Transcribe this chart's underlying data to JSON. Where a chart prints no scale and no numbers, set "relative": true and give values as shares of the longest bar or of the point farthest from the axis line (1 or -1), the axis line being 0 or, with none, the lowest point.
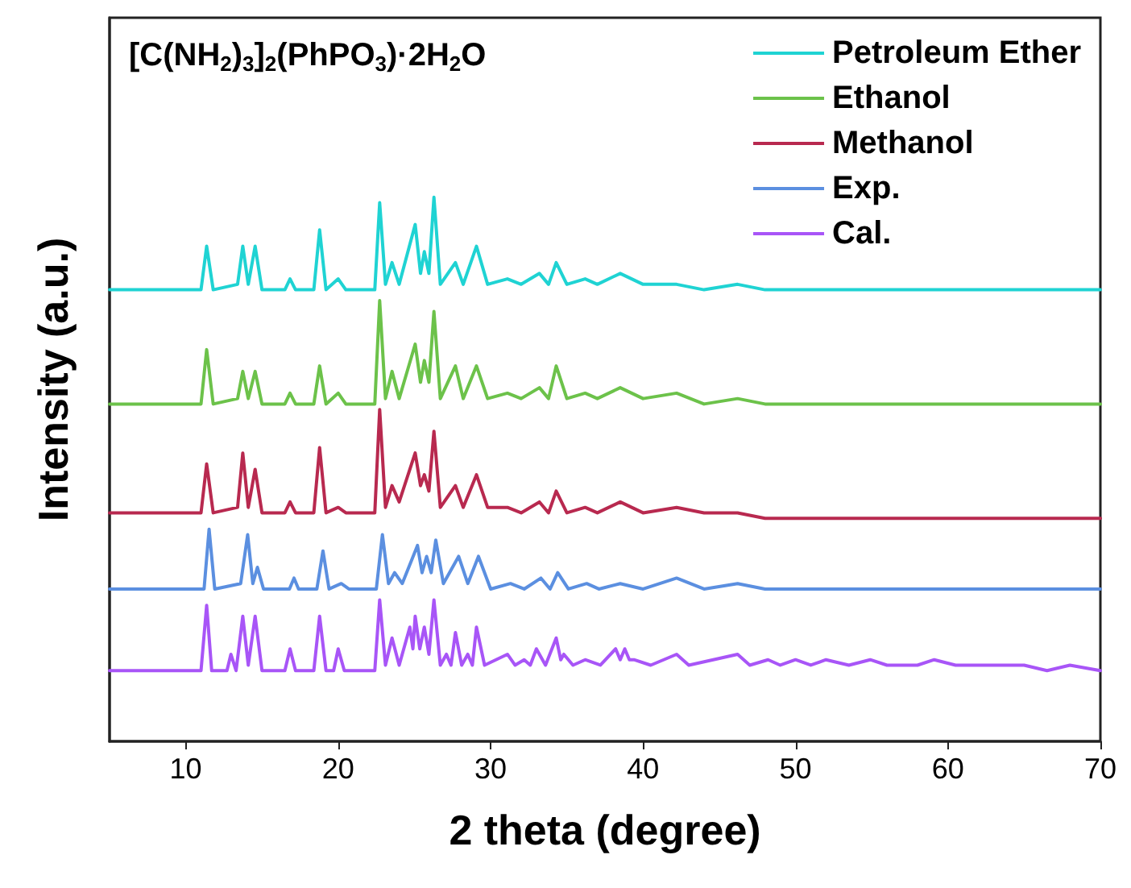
{
  "chart_data": {
    "type": "line",
    "title": "[C(NH$_{2}$)$_{3}$]$_{2}$(PhPO$_{3}$)·2H$_{2}$O",
    "xlabel": "2 theta (degree)",
    "ylabel": "Intensity (a.u.)",
    "relative": true,
    "xlim": [
      5,
      70
    ],
    "xticks": [
      10,
      20,
      30,
      40,
      50,
      60,
      70
    ],
    "grid": false,
    "legend": "top right",
    "marker": "none",
    "line_style": "solid",
    "series": [
      {
        "name": "Petroleum Ether",
        "color": "#1fd3d3",
        "x": [
          5,
          11.0,
          11.37,
          11.8,
          13.4,
          13.74,
          14.1,
          14.55,
          15.0,
          16.5,
          16.84,
          17.2,
          18.4,
          18.78,
          19.2,
          20.0,
          20.5,
          22.4,
          22.72,
          23.1,
          23.53,
          24.0,
          25.05,
          25.4,
          25.65,
          25.95,
          26.28,
          26.7,
          27.69,
          28.2,
          29.07,
          29.8,
          31.1,
          32.0,
          33.2,
          33.8,
          34.3,
          35.0,
          36.2,
          37.0,
          38.5,
          40.0,
          42.2,
          44,
          46.2,
          48,
          70
        ],
        "values": [
          0.83,
          0.83,
          0.91,
          0.83,
          0.84,
          0.91,
          0.84,
          0.91,
          0.83,
          0.83,
          0.85,
          0.83,
          0.83,
          0.94,
          0.83,
          0.85,
          0.83,
          0.83,
          0.99,
          0.84,
          0.88,
          0.84,
          0.95,
          0.86,
          0.9,
          0.86,
          1.0,
          0.84,
          0.88,
          0.84,
          0.91,
          0.84,
          0.85,
          0.84,
          0.86,
          0.84,
          0.88,
          0.84,
          0.85,
          0.84,
          0.86,
          0.84,
          0.84,
          0.83,
          0.84,
          0.83,
          0.83
        ]
      },
      {
        "name": "Ethanol",
        "color": "#6cc24a",
        "x": [
          5,
          11.0,
          11.37,
          11.8,
          13.4,
          13.74,
          14.1,
          14.55,
          15.0,
          16.5,
          16.84,
          17.2,
          18.4,
          18.78,
          19.2,
          20.0,
          20.5,
          22.4,
          22.72,
          23.1,
          23.53,
          24.0,
          25.05,
          25.4,
          25.65,
          25.95,
          26.28,
          26.7,
          27.69,
          28.2,
          29.07,
          29.8,
          31.1,
          32.0,
          33.2,
          33.8,
          34.3,
          35.0,
          36.2,
          37.0,
          38.5,
          40.0,
          42.2,
          44,
          46.2,
          48,
          70
        ],
        "values": [
          0.62,
          0.62,
          0.72,
          0.62,
          0.63,
          0.68,
          0.63,
          0.68,
          0.62,
          0.62,
          0.64,
          0.62,
          0.62,
          0.69,
          0.62,
          0.64,
          0.62,
          0.62,
          0.81,
          0.63,
          0.68,
          0.63,
          0.73,
          0.66,
          0.7,
          0.66,
          0.79,
          0.63,
          0.69,
          0.63,
          0.69,
          0.63,
          0.64,
          0.63,
          0.65,
          0.63,
          0.69,
          0.63,
          0.64,
          0.63,
          0.65,
          0.63,
          0.64,
          0.62,
          0.63,
          0.62,
          0.62
        ]
      },
      {
        "name": "Methanol",
        "color": "#b8294f",
        "x": [
          5,
          11.0,
          11.37,
          11.8,
          13.4,
          13.74,
          14.1,
          14.55,
          15.0,
          16.5,
          16.84,
          17.2,
          18.4,
          18.78,
          19.2,
          20.0,
          20.5,
          22.4,
          22.72,
          23.1,
          23.53,
          24.0,
          25.05,
          25.4,
          25.65,
          25.95,
          26.28,
          26.7,
          27.69,
          28.2,
          29.07,
          29.8,
          31.1,
          32.0,
          33.2,
          33.8,
          34.3,
          35.0,
          36.2,
          37.0,
          38.5,
          40.0,
          42.2,
          44,
          46.2,
          48,
          70
        ],
        "values": [
          0.42,
          0.42,
          0.51,
          0.42,
          0.43,
          0.53,
          0.43,
          0.5,
          0.42,
          0.42,
          0.44,
          0.42,
          0.42,
          0.54,
          0.42,
          0.43,
          0.42,
          0.42,
          0.61,
          0.43,
          0.47,
          0.44,
          0.53,
          0.47,
          0.49,
          0.46,
          0.57,
          0.43,
          0.47,
          0.43,
          0.49,
          0.43,
          0.43,
          0.42,
          0.44,
          0.42,
          0.46,
          0.42,
          0.43,
          0.42,
          0.44,
          0.42,
          0.43,
          0.42,
          0.42,
          0.41,
          0.41
        ]
      },
      {
        "name": "Exp.",
        "color": "#5b8fe0",
        "x": [
          5,
          11.2,
          11.53,
          11.9,
          13.6,
          14.06,
          14.4,
          14.7,
          15.1,
          16.8,
          17.1,
          17.4,
          18.6,
          19.0,
          19.4,
          20.2,
          20.7,
          22.5,
          22.9,
          23.3,
          23.7,
          24.2,
          25.2,
          25.5,
          25.8,
          26.1,
          26.4,
          26.9,
          27.9,
          28.5,
          29.2,
          30.0,
          31.3,
          32.2,
          33.3,
          33.9,
          34.4,
          35.1,
          36.3,
          37.1,
          38.5,
          40,
          42.2,
          44,
          46.2,
          48,
          70
        ],
        "values": [
          0.28,
          0.28,
          0.39,
          0.28,
          0.29,
          0.38,
          0.29,
          0.32,
          0.28,
          0.28,
          0.3,
          0.28,
          0.28,
          0.35,
          0.28,
          0.29,
          0.28,
          0.28,
          0.38,
          0.29,
          0.31,
          0.29,
          0.36,
          0.31,
          0.34,
          0.31,
          0.37,
          0.29,
          0.34,
          0.29,
          0.34,
          0.28,
          0.29,
          0.28,
          0.3,
          0.28,
          0.31,
          0.28,
          0.29,
          0.28,
          0.29,
          0.28,
          0.3,
          0.28,
          0.29,
          0.28,
          0.28
        ]
      },
      {
        "name": "Cal.",
        "color": "#a855f7",
        "x": [
          5,
          11.0,
          11.37,
          11.7,
          12.7,
          12.96,
          13.3,
          13.74,
          14.1,
          14.55,
          15.0,
          16.5,
          16.84,
          17.2,
          18.4,
          18.78,
          19.2,
          19.7,
          20.0,
          20.4,
          22.4,
          22.72,
          23.1,
          23.53,
          24.0,
          24.7,
          24.9,
          25.05,
          25.35,
          25.65,
          25.95,
          26.28,
          26.7,
          27.1,
          27.4,
          27.69,
          28.1,
          28.5,
          28.8,
          29.07,
          29.6,
          31.1,
          31.6,
          32.2,
          32.6,
          33.0,
          33.6,
          34.3,
          34.6,
          34.8,
          35.4,
          36.2,
          37.2,
          38.2,
          38.5,
          38.8,
          39.1,
          39.4,
          40.5,
          42.2,
          43,
          46.2,
          47,
          48.2,
          49,
          50.0,
          51,
          52,
          53.5,
          54.9,
          56,
          57,
          58,
          59.1,
          60.5,
          62,
          63.5,
          65,
          66.5,
          68,
          70
        ],
        "values": [
          0.13,
          0.13,
          0.25,
          0.13,
          0.13,
          0.16,
          0.13,
          0.23,
          0.14,
          0.23,
          0.13,
          0.13,
          0.17,
          0.13,
          0.13,
          0.23,
          0.13,
          0.13,
          0.17,
          0.13,
          0.13,
          0.26,
          0.14,
          0.19,
          0.14,
          0.21,
          0.17,
          0.23,
          0.17,
          0.21,
          0.16,
          0.26,
          0.14,
          0.16,
          0.14,
          0.2,
          0.14,
          0.16,
          0.14,
          0.21,
          0.14,
          0.16,
          0.14,
          0.15,
          0.14,
          0.17,
          0.14,
          0.19,
          0.15,
          0.16,
          0.14,
          0.15,
          0.14,
          0.17,
          0.15,
          0.17,
          0.15,
          0.15,
          0.14,
          0.16,
          0.14,
          0.16,
          0.14,
          0.15,
          0.14,
          0.15,
          0.14,
          0.15,
          0.14,
          0.15,
          0.14,
          0.14,
          0.14,
          0.15,
          0.14,
          0.14,
          0.14,
          0.14,
          0.13,
          0.14,
          0.13
        ]
      }
    ]
  }
}
